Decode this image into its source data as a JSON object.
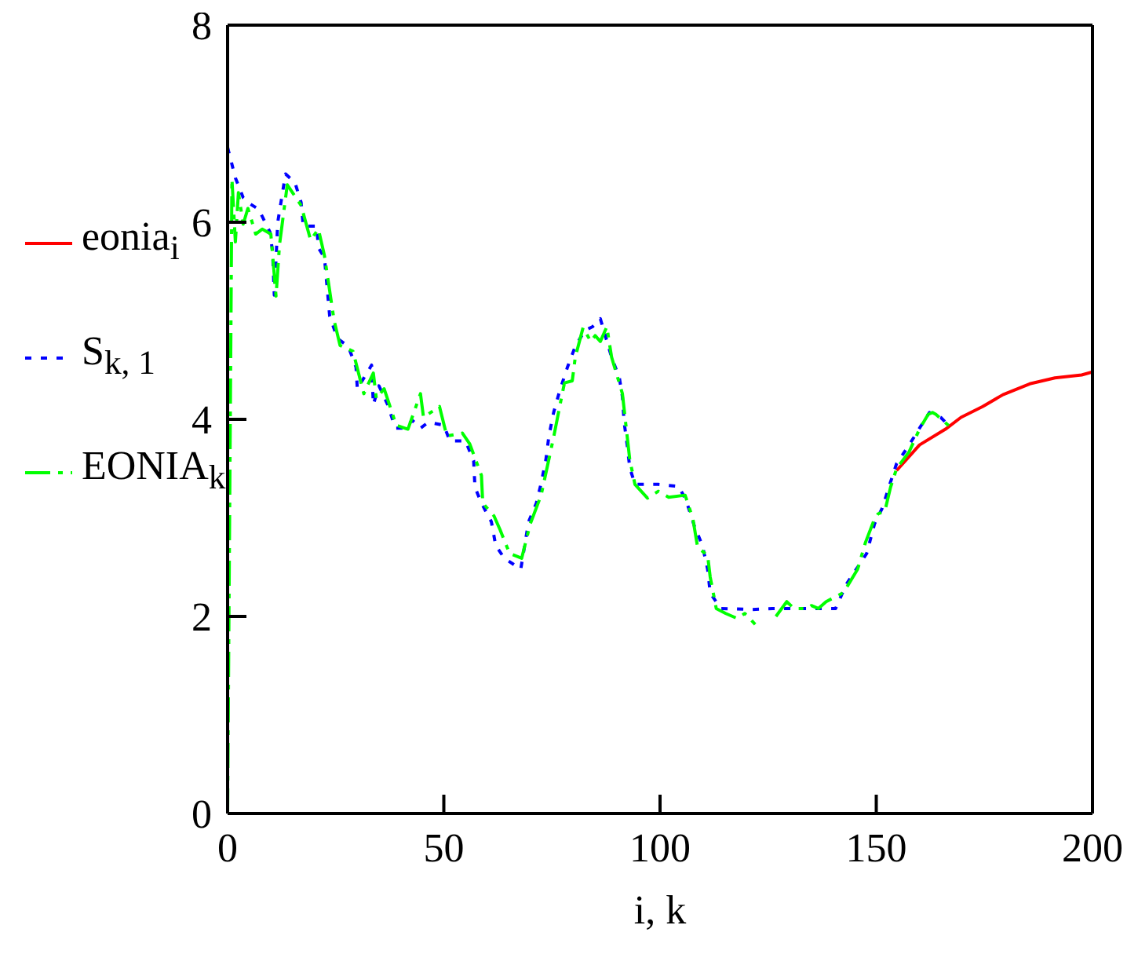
{
  "chart_data": {
    "type": "line",
    "xlabel": "i, k",
    "xlim": [
      0,
      200
    ],
    "xticks": [
      0,
      50,
      100,
      150,
      200
    ],
    "ylim": [
      0,
      8
    ],
    "yticks": [
      0,
      2,
      4,
      6,
      8
    ],
    "legend": "left",
    "marker": "none",
    "series": [
      {
        "name": "eonia$_{i}$",
        "color": "#ff0000",
        "line_style": "solid",
        "x": [
          154.7,
          160,
          166,
          169.6,
          174.6,
          179.3,
          185.5,
          191.3,
          197.5,
          200
        ],
        "values": [
          3.48,
          3.74,
          3.9,
          4.02,
          4.13,
          4.25,
          4.36,
          4.42,
          4.45,
          4.48
        ]
      },
      {
        "name": "S$_{k, 1}$",
        "color": "#0000ff",
        "line_style": "dotted",
        "x": [
          0,
          1.8,
          3.6,
          4.7,
          7.2,
          9.8,
          10.4,
          10.8,
          11.6,
          13.4,
          15.6,
          17,
          17.5,
          20.6,
          21,
          22.4,
          23.6,
          25.4,
          27.9,
          29.7,
          30,
          33.3,
          33.7,
          35,
          37,
          38.8,
          41,
          42.7,
          44.6,
          46.4,
          50,
          51.4,
          55,
          56.9,
          57.2,
          58.7,
          61,
          62,
          64,
          67.8,
          69.6,
          71.4,
          72.5,
          73.6,
          74.3,
          75.4,
          76.8,
          78.6,
          80.4,
          82.6,
          84.4,
          86.2,
          87,
          88.8,
          90.6,
          91.3,
          91.7,
          92.4,
          93,
          94.2,
          99.6,
          104.3,
          106,
          108,
          109.8,
          111,
          111.6,
          114,
          121.4,
          126,
          131,
          136,
          140.6,
          143,
          147.8,
          149.6,
          151.4,
          152.9,
          154.7,
          157.6,
          160,
          162.3,
          164.9,
          166.7
        ],
        "values": [
          6.76,
          6.45,
          6.25,
          6.2,
          6.13,
          5.9,
          5.7,
          5.26,
          6.0,
          6.49,
          6.4,
          6.2,
          5.96,
          5.96,
          5.74,
          5.64,
          5.05,
          4.82,
          4.74,
          4.53,
          4.31,
          4.55,
          4.15,
          4.34,
          4.15,
          3.91,
          3.91,
          3.99,
          3.91,
          3.97,
          3.94,
          3.78,
          3.78,
          3.58,
          3.31,
          3.15,
          2.96,
          2.72,
          2.59,
          2.48,
          2.96,
          3.15,
          3.35,
          3.59,
          3.83,
          4.07,
          4.29,
          4.53,
          4.74,
          4.9,
          4.94,
          5.02,
          4.9,
          4.63,
          4.42,
          4.23,
          3.97,
          3.74,
          3.51,
          3.34,
          3.34,
          3.32,
          3.18,
          2.91,
          2.72,
          2.48,
          2.24,
          2.08,
          2.07,
          2.08,
          2.08,
          2.08,
          2.08,
          2.32,
          2.64,
          2.94,
          3.1,
          3.31,
          3.55,
          3.74,
          3.91,
          4.07,
          4.02,
          3.94
        ]
      },
      {
        "name": "EONIA$_{k}$",
        "color": "#00ff00",
        "line_style": "dashed",
        "x": [
          0,
          1,
          1.8,
          2.5,
          3.6,
          4.7,
          6.5,
          8,
          10,
          11.2,
          12,
          13.8,
          17,
          19.2,
          21,
          22.4,
          24.6,
          26,
          29,
          31.5,
          33.7,
          34.4,
          36.2,
          39,
          41.7,
          44.6,
          45.3,
          49,
          50.7,
          54.3,
          56,
          58.7,
          59,
          61.6,
          63,
          65.2,
          68,
          70,
          72.5,
          75.4,
          76.8,
          77.9,
          79.7,
          80.4,
          82.2,
          84,
          85,
          86.2,
          87.7,
          88.8,
          91.3,
          93,
          94.2,
          97.1,
          99.6,
          102,
          105.8,
          107.6,
          108.7,
          111,
          111.6,
          113,
          115.2,
          117.8,
          119.6,
          122,
          124,
          126.8,
          129.3,
          131,
          134,
          135,
          136.6,
          138.4,
          142.4,
          145.7,
          147.5,
          149.6,
          150.4,
          152,
          153.3,
          154.7,
          157.6,
          160,
          162,
          163,
          163.8,
          167.4
        ],
        "values": [
          0,
          6.44,
          5.8,
          6.3,
          5.98,
          6.14,
          5.88,
          5.93,
          5.88,
          5.25,
          5.77,
          6.38,
          6.17,
          5.82,
          5.93,
          5.66,
          5.01,
          4.75,
          4.69,
          4.26,
          4.47,
          4.21,
          4.31,
          3.94,
          3.9,
          4.26,
          4.02,
          4.13,
          3.83,
          3.86,
          3.75,
          3.43,
          3.15,
          3.02,
          2.88,
          2.64,
          2.59,
          2.94,
          3.23,
          3.82,
          4.13,
          4.37,
          4.39,
          4.63,
          4.93,
          4.79,
          4.85,
          4.79,
          4.94,
          4.63,
          4.26,
          3.59,
          3.34,
          3.2,
          3.27,
          3.21,
          3.23,
          2.99,
          2.7,
          2.62,
          2.4,
          2.08,
          2.03,
          1.98,
          2.03,
          1.92,
          null,
          2.0,
          2.15,
          2.08,
          2.08,
          2.11,
          2.08,
          2.15,
          2.24,
          2.48,
          2.75,
          2.99,
          3.04,
          3.07,
          3.31,
          3.5,
          3.67,
          3.9,
          4.05,
          4.07,
          4.05,
          3.91
        ]
      }
    ]
  }
}
